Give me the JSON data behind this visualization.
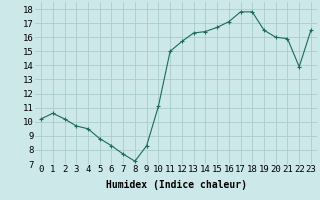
{
  "x": [
    0,
    1,
    2,
    3,
    4,
    5,
    6,
    7,
    8,
    9,
    10,
    11,
    12,
    13,
    14,
    15,
    16,
    17,
    18,
    19,
    20,
    21,
    22,
    23
  ],
  "y": [
    10.2,
    10.6,
    10.2,
    9.7,
    9.5,
    8.8,
    8.3,
    7.7,
    7.2,
    8.3,
    11.1,
    15.0,
    15.7,
    16.3,
    16.4,
    16.7,
    17.1,
    17.8,
    17.8,
    16.5,
    16.0,
    15.9,
    13.9,
    16.5
  ],
  "xlabel": "Humidex (Indice chaleur)",
  "bg_color": "#cce8e8",
  "grid_color": "#aacccc",
  "line_color": "#1a6b5a",
  "marker_color": "#1a6b5a",
  "xlim": [
    -0.5,
    23.5
  ],
  "ylim": [
    7,
    18.5
  ],
  "yticks": [
    7,
    8,
    9,
    10,
    11,
    12,
    13,
    14,
    15,
    16,
    17,
    18
  ],
  "xticks": [
    0,
    1,
    2,
    3,
    4,
    5,
    6,
    7,
    8,
    9,
    10,
    11,
    12,
    13,
    14,
    15,
    16,
    17,
    18,
    19,
    20,
    21,
    22,
    23
  ],
  "xlabel_fontsize": 7,
  "tick_fontsize": 6.5
}
